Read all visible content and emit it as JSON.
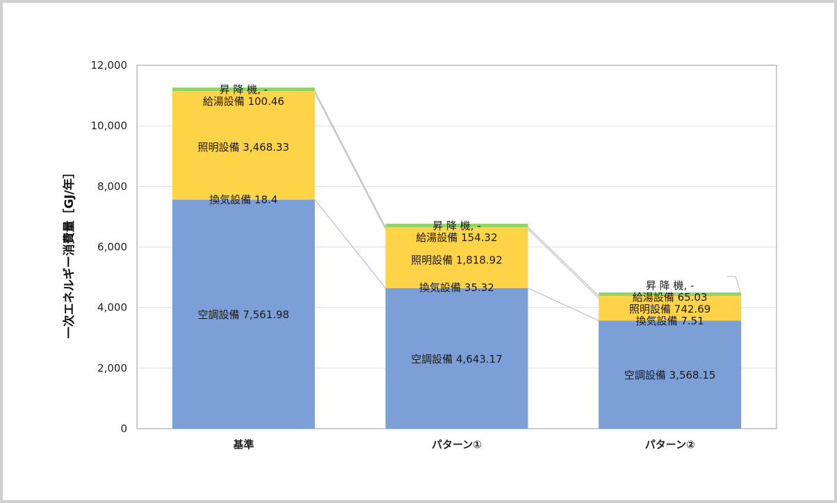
{
  "colors": {
    "空調設備": "#7b9fd6",
    "換気設備": "#ffd347",
    "照明設備": "#ffd347",
    "給湯設備": "#ffd347",
    "昇降機": "#8fd468",
    "gridline": "#e3e3e3",
    "connector": "#bdbdbd"
  },
  "chart_data": {
    "type": "bar",
    "stacked": true,
    "title": "",
    "xlabel": "",
    "ylabel": "一次エネルギー消費量［GJ/年］",
    "ylim": [
      0,
      12000
    ],
    "yticks": [
      {
        "value": 0,
        "label": "0"
      },
      {
        "value": 2000,
        "label": "2,000"
      },
      {
        "value": 4000,
        "label": "4,000"
      },
      {
        "value": 6000,
        "label": "6,000"
      },
      {
        "value": 8000,
        "label": "8,000"
      },
      {
        "value": 10000,
        "label": "10,000"
      },
      {
        "value": 12000,
        "label": "12,000"
      }
    ],
    "grid": true,
    "categories": [
      "基準",
      "パターン①",
      "パターン②"
    ],
    "series": [
      {
        "name": "空調設備",
        "values": [
          7561.98,
          4643.17,
          3568.15
        ],
        "labels": [
          "空調設備 7,561.98",
          "空調設備 4,643.17",
          "空調設備 3,568.15"
        ]
      },
      {
        "name": "換気設備",
        "values": [
          18.4,
          35.32,
          7.51
        ],
        "labels": [
          "換気設備 18.4",
          "換気設備 35.32",
          "換気設備 7.51"
        ]
      },
      {
        "name": "照明設備",
        "values": [
          3468.33,
          1818.92,
          742.69
        ],
        "labels": [
          "照明設備 3,468.33",
          "照明設備 1,818.92",
          "照明設備 742.69"
        ]
      },
      {
        "name": "給湯設備",
        "values": [
          100.46,
          154.32,
          65.03
        ],
        "labels": [
          "給湯設備 100.46",
          "給湯設備 154.32",
          "給湯設備 65.03"
        ]
      },
      {
        "name": "昇降機",
        "values": [
          0,
          0,
          0
        ],
        "labels": [
          "昇 降 機, -",
          "昇 降 機, -",
          "昇 降 機, -"
        ]
      }
    ]
  }
}
